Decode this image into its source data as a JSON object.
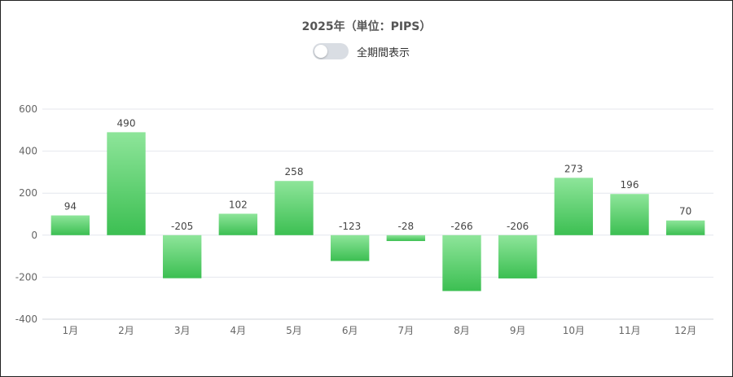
{
  "title": "2025年（単位：PIPS）",
  "toggle": {
    "label": "全期間表示",
    "checked": false
  },
  "chart_data": {
    "type": "bar",
    "categories": [
      "1月",
      "2月",
      "3月",
      "4月",
      "5月",
      "6月",
      "7月",
      "8月",
      "9月",
      "10月",
      "11月",
      "12月"
    ],
    "values": [
      94,
      490,
      -205,
      102,
      258,
      -123,
      -28,
      -266,
      -206,
      273,
      196,
      70
    ],
    "ylim": [
      -400,
      600
    ],
    "yticks": [
      -400,
      -200,
      0,
      200,
      400,
      600
    ],
    "grid": true,
    "bar_color_top": "#8ee59a",
    "bar_color_bottom": "#3cbf52",
    "xlabel": "",
    "ylabel": ""
  }
}
